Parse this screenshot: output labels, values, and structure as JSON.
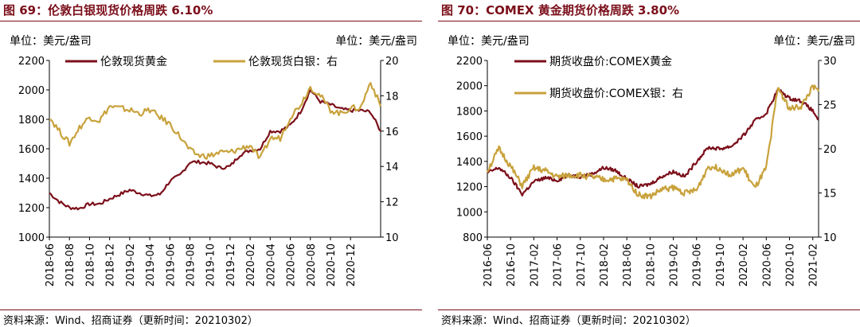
{
  "colors": {
    "gold": "#7b0f1a",
    "silver": "#c8a23c",
    "title": "#7b0f1a"
  },
  "panels": [
    {
      "title": "图 69：伦敦白银现货价格周跌 6.10%",
      "source": "资料来源：Wind、招商证券（更新时间：20210302）",
      "chart_data": {
        "type": "line",
        "left_unit": "单位：美元/盎司",
        "right_unit": "单位：美元/盎司",
        "left_axis": {
          "ylim": [
            1000,
            2200
          ],
          "ticks": [
            "1000",
            "1200",
            "1400",
            "1600",
            "1800",
            "2000",
            "2200"
          ]
        },
        "right_axis": {
          "ylim": [
            10,
            20
          ],
          "ticks": [
            "10",
            "12",
            "14",
            "16",
            "18",
            "20"
          ]
        },
        "x_range": [
          "2018-06",
          "2021-03"
        ],
        "x_ticks": [
          "2018-06",
          "2018-08",
          "2018-10",
          "2018-12",
          "2019-02",
          "2019-04",
          "2019-06",
          "2019-08",
          "2019-10",
          "2019-12",
          "2020-02",
          "2020-04",
          "2020-06",
          "2020-08",
          "2020-10",
          "2020-12"
        ],
        "series": [
          {
            "name": "伦敦现货黄金",
            "axis": "left",
            "x": [
              "2018-06",
              "2018-07",
              "2018-08",
              "2018-09",
              "2018-10",
              "2018-11",
              "2018-12",
              "2019-01",
              "2019-02",
              "2019-03",
              "2019-04",
              "2019-05",
              "2019-06",
              "2019-07",
              "2019-08",
              "2019-09",
              "2019-10",
              "2019-11",
              "2019-12",
              "2020-01",
              "2020-02",
              "2020-03",
              "2020-04",
              "2020-05",
              "2020-06",
              "2020-07",
              "2020-08",
              "2020-09",
              "2020-10",
              "2020-11",
              "2020-12",
              "2021-01",
              "2021-02",
              "2021-03"
            ],
            "values": [
              1300,
              1240,
              1200,
              1195,
              1225,
              1225,
              1260,
              1290,
              1320,
              1300,
              1280,
              1290,
              1380,
              1420,
              1510,
              1510,
              1500,
              1470,
              1480,
              1560,
              1590,
              1600,
              1720,
              1720,
              1760,
              1850,
              2000,
              1920,
              1900,
              1870,
              1860,
              1860,
              1850,
              1720
            ]
          },
          {
            "name": "伦敦现货白银：右",
            "axis": "right",
            "x": [
              "2018-06",
              "2018-07",
              "2018-08",
              "2018-09",
              "2018-10",
              "2018-11",
              "2018-12",
              "2019-01",
              "2019-02",
              "2019-03",
              "2019-04",
              "2019-05",
              "2019-06",
              "2019-07",
              "2019-08",
              "2019-09",
              "2019-10",
              "2019-11",
              "2019-12",
              "2020-01",
              "2020-02",
              "2020-03",
              "2020-04",
              "2020-05",
              "2020-06",
              "2020-07",
              "2020-08",
              "2020-09",
              "2020-10",
              "2020-11",
              "2020-12",
              "2021-01",
              "2021-02",
              "2021-03"
            ],
            "values": [
              16.8,
              16.0,
              15.3,
              16.2,
              16.8,
              16.6,
              17.4,
              17.3,
              17.2,
              17.0,
              17.2,
              16.8,
              16.4,
              15.7,
              14.9,
              14.6,
              14.6,
              14.8,
              14.8,
              15.0,
              15.2,
              14.4,
              15.6,
              15.6,
              16.8,
              17.5,
              18.5,
              18.0,
              17.2,
              17.0,
              17.3,
              17.3,
              18.8,
              17.4
            ]
          }
        ],
        "legend": [
          "伦敦现货黄金",
          "伦敦现货白银：右"
        ]
      }
    },
    {
      "title": "图 70：COMEX 黄金期货价格周跌 3.80%",
      "source": "资料来源：Wind、招商证券（更新时间：20210302）",
      "chart_data": {
        "type": "line",
        "left_unit": "单位：美元/盎司",
        "right_unit": "单位：美元/盎司",
        "left_axis": {
          "ylim": [
            800,
            2200
          ],
          "ticks": [
            "800",
            "1000",
            "1200",
            "1400",
            "1600",
            "1800",
            "2000",
            "2200"
          ]
        },
        "right_axis": {
          "ylim": [
            10,
            30
          ],
          "ticks": [
            "10",
            "15",
            "20",
            "25",
            "30"
          ]
        },
        "x_range": [
          "2016-06",
          "2021-03"
        ],
        "x_ticks": [
          "2016-06",
          "2016-10",
          "2017-02",
          "2017-06",
          "2017-10",
          "2018-02",
          "2018-06",
          "2018-10",
          "2019-02",
          "2019-06",
          "2019-10",
          "2020-02",
          "2020-06",
          "2020-10",
          "2021-02"
        ],
        "series": [
          {
            "name": "期货收盘价:COMEX黄金",
            "axis": "left",
            "x": [
              "2016-06",
              "2016-08",
              "2016-10",
              "2016-12",
              "2017-02",
              "2017-04",
              "2017-06",
              "2017-08",
              "2017-10",
              "2017-12",
              "2018-02",
              "2018-04",
              "2018-06",
              "2018-08",
              "2018-10",
              "2018-12",
              "2019-02",
              "2019-04",
              "2019-06",
              "2019-08",
              "2019-10",
              "2019-12",
              "2020-02",
              "2020-04",
              "2020-06",
              "2020-08",
              "2020-10",
              "2020-12",
              "2021-02",
              "2021-03"
            ],
            "values": [
              1310,
              1350,
              1270,
              1140,
              1240,
              1270,
              1250,
              1290,
              1280,
              1300,
              1350,
              1330,
              1260,
              1200,
              1220,
              1280,
              1320,
              1280,
              1400,
              1510,
              1500,
              1520,
              1600,
              1720,
              1780,
              1970,
              1900,
              1880,
              1800,
              1730
            ]
          },
          {
            "name": "期货收盘价:COMEX银：右",
            "axis": "right",
            "x": [
              "2016-06",
              "2016-08",
              "2016-10",
              "2016-12",
              "2017-02",
              "2017-04",
              "2017-06",
              "2017-08",
              "2017-10",
              "2017-12",
              "2018-02",
              "2018-04",
              "2018-06",
              "2018-08",
              "2018-10",
              "2018-12",
              "2019-02",
              "2019-04",
              "2019-06",
              "2019-08",
              "2019-10",
              "2019-12",
              "2020-02",
              "2020-04",
              "2020-06",
              "2020-08",
              "2020-10",
              "2020-12",
              "2021-02",
              "2021-03"
            ],
            "values": [
              17.5,
              20.0,
              18.0,
              15.8,
              17.8,
              17.5,
              16.8,
              17.0,
              17.0,
              16.8,
              16.5,
              16.6,
              16.5,
              14.8,
              14.6,
              15.4,
              15.6,
              15.0,
              15.3,
              18.0,
              17.8,
              17.0,
              17.8,
              15.5,
              17.8,
              27.0,
              24.5,
              24.8,
              27.0,
              26.5
            ]
          }
        ],
        "legend": [
          "期货收盘价:COMEX黄金",
          "期货收盘价:COMEX银：右"
        ]
      }
    }
  ]
}
